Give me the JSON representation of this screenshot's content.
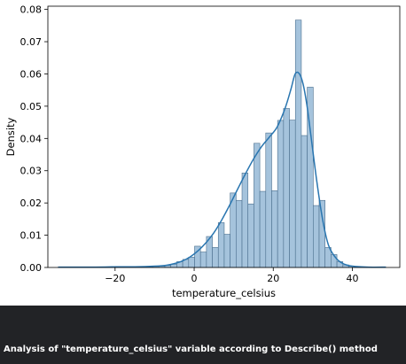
{
  "chart_data": {
    "type": "bar",
    "subtype": "histogram-with-kde",
    "xlabel": "temperature_celsius",
    "ylabel": "Density",
    "xlim": [
      -37,
      52
    ],
    "ylim": [
      0,
      0.081
    ],
    "xticks": [
      -20,
      0,
      20,
      40
    ],
    "xtick_labels": [
      "−20",
      "0",
      "20",
      "40"
    ],
    "yticks": [
      0,
      0.01,
      0.02,
      0.03,
      0.04,
      0.05,
      0.06,
      0.07,
      0.08
    ],
    "ytick_labels": [
      "0.00",
      "0.01",
      "0.02",
      "0.03",
      "0.04",
      "0.05",
      "0.06",
      "0.07",
      "0.08"
    ],
    "grid": false,
    "bar_color": "#a5c3dc",
    "edge_color": "#4b6f8e",
    "kde_color": "#2a76b0",
    "histogram": {
      "bins": [
        {
          "start": -34.4,
          "end": -32.9,
          "density": 0.0001
        },
        {
          "start": -32.9,
          "end": -31.4,
          "density": 0.0001
        },
        {
          "start": -31.4,
          "end": -29.9,
          "density": 0.0001
        },
        {
          "start": -29.9,
          "end": -28.4,
          "density": 0.0001
        },
        {
          "start": -28.4,
          "end": -26.9,
          "density": 0.0001
        },
        {
          "start": -26.9,
          "end": -25.4,
          "density": 0.0001
        },
        {
          "start": -25.4,
          "end": -23.9,
          "density": 0.0001
        },
        {
          "start": -23.9,
          "end": -22.4,
          "density": 0.0001
        },
        {
          "start": -22.4,
          "end": -20.9,
          "density": 0.0001
        },
        {
          "start": -20.9,
          "end": -19.4,
          "density": 0.0001
        },
        {
          "start": -19.4,
          "end": -17.9,
          "density": 0.0001
        },
        {
          "start": -17.9,
          "end": -16.4,
          "density": 0.0001
        },
        {
          "start": -16.4,
          "end": -14.9,
          "density": 0.0001
        },
        {
          "start": -14.9,
          "end": -13.4,
          "density": 0.0001
        },
        {
          "start": -13.4,
          "end": -11.9,
          "density": 0.0001
        },
        {
          "start": -11.9,
          "end": -10.4,
          "density": 0.0002
        },
        {
          "start": -10.4,
          "end": -8.9,
          "density": 0.0003
        },
        {
          "start": -8.9,
          "end": -7.4,
          "density": 0.0004
        },
        {
          "start": -7.4,
          "end": -5.9,
          "density": 0.0006
        },
        {
          "start": -5.9,
          "end": -4.4,
          "density": 0.001
        },
        {
          "start": -4.4,
          "end": -2.9,
          "density": 0.0018
        },
        {
          "start": -2.9,
          "end": -1.4,
          "density": 0.0025
        },
        {
          "start": -1.4,
          "end": 0.1,
          "density": 0.0032
        },
        {
          "start": 0.1,
          "end": 1.6,
          "density": 0.0066
        },
        {
          "start": 1.6,
          "end": 3.1,
          "density": 0.0048
        },
        {
          "start": 3.1,
          "end": 4.6,
          "density": 0.0096
        },
        {
          "start": 4.6,
          "end": 6.1,
          "density": 0.0062
        },
        {
          "start": 6.1,
          "end": 7.6,
          "density": 0.0139
        },
        {
          "start": 7.6,
          "end": 9.1,
          "density": 0.0103
        },
        {
          "start": 9.1,
          "end": 10.6,
          "density": 0.0231
        },
        {
          "start": 10.6,
          "end": 12.1,
          "density": 0.0208
        },
        {
          "start": 12.1,
          "end": 13.6,
          "density": 0.0293
        },
        {
          "start": 13.6,
          "end": 15.1,
          "density": 0.0197
        },
        {
          "start": 15.1,
          "end": 16.6,
          "density": 0.0385
        },
        {
          "start": 16.6,
          "end": 18.1,
          "density": 0.0236
        },
        {
          "start": 18.1,
          "end": 19.6,
          "density": 0.0417
        },
        {
          "start": 19.6,
          "end": 21.1,
          "density": 0.0238
        },
        {
          "start": 21.1,
          "end": 22.6,
          "density": 0.0456
        },
        {
          "start": 22.6,
          "end": 24.1,
          "density": 0.0493
        },
        {
          "start": 24.1,
          "end": 25.6,
          "density": 0.0457
        },
        {
          "start": 25.6,
          "end": 27.1,
          "density": 0.0767
        },
        {
          "start": 27.1,
          "end": 28.6,
          "density": 0.0409
        },
        {
          "start": 28.6,
          "end": 30.1,
          "density": 0.0559
        },
        {
          "start": 30.1,
          "end": 31.6,
          "density": 0.0192
        },
        {
          "start": 31.6,
          "end": 33.1,
          "density": 0.0208
        },
        {
          "start": 33.1,
          "end": 34.6,
          "density": 0.0062
        },
        {
          "start": 34.6,
          "end": 36.1,
          "density": 0.004
        },
        {
          "start": 36.1,
          "end": 37.6,
          "density": 0.0018
        },
        {
          "start": 37.6,
          "end": 39.1,
          "density": 0.0008
        },
        {
          "start": 39.1,
          "end": 40.6,
          "density": 0.0004
        },
        {
          "start": 40.6,
          "end": 42.1,
          "density": 0.0001
        },
        {
          "start": 42.1,
          "end": 43.6,
          "density": 0.0001
        },
        {
          "start": 43.6,
          "end": 45.1,
          "density": 0.0001
        },
        {
          "start": 45.1,
          "end": 46.6,
          "density": 0.0001
        },
        {
          "start": 46.6,
          "end": 48.1,
          "density": 0.0001
        }
      ]
    },
    "kde": {
      "x": [
        -34.4,
        -30,
        -25,
        -20,
        -15,
        -10,
        -7,
        -5,
        -3,
        -1,
        1,
        3,
        5,
        7,
        9,
        11,
        13,
        15,
        17,
        19,
        21,
        23,
        24.5,
        25.5,
        26.5,
        27.5,
        28.5,
        29.5,
        31,
        32.5,
        34,
        36,
        38,
        40,
        44,
        48.5
      ],
      "y": [
        0.0001,
        0.0001,
        0.0001,
        0.0002,
        0.0002,
        0.0004,
        0.0007,
        0.0012,
        0.002,
        0.0033,
        0.0052,
        0.0077,
        0.0108,
        0.0148,
        0.0194,
        0.0243,
        0.0291,
        0.0336,
        0.0374,
        0.0404,
        0.0436,
        0.0494,
        0.0554,
        0.0599,
        0.0602,
        0.0571,
        0.0504,
        0.0411,
        0.0268,
        0.0147,
        0.0068,
        0.0027,
        0.001,
        0.0004,
        0.0001,
        0.0001
      ]
    }
  },
  "caption": {
    "text": "Analysis of \"temperature_celsius\" variable according to Describe() method"
  }
}
